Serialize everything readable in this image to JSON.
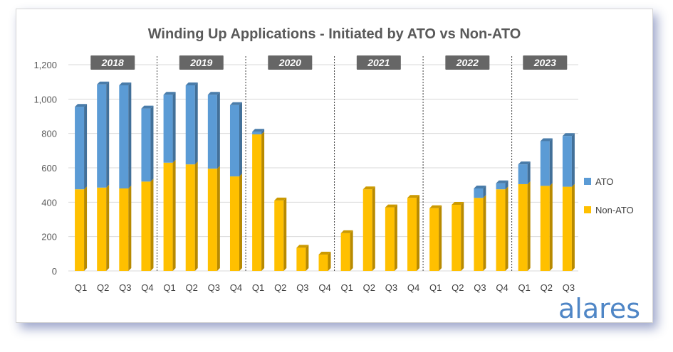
{
  "chart_data": {
    "type": "bar",
    "stacked": true,
    "title": "Winding Up Applications - Initiated by ATO vs Non-ATO",
    "groups": [
      "2018",
      "2019",
      "2020",
      "2021",
      "2022",
      "2023"
    ],
    "categories": [
      "Q1",
      "Q2",
      "Q3",
      "Q4",
      "Q1",
      "Q2",
      "Q3",
      "Q4",
      "Q1",
      "Q2",
      "Q3",
      "Q4",
      "Q1",
      "Q2",
      "Q3",
      "Q4",
      "Q1",
      "Q2",
      "Q3",
      "Q4",
      "Q1",
      "Q2",
      "Q3"
    ],
    "series": [
      {
        "name": "Non-ATO",
        "color": "#ffc000",
        "values": [
          475,
          485,
          480,
          520,
          630,
          620,
          595,
          550,
          795,
          410,
          135,
          95,
          220,
          475,
          370,
          425,
          365,
          385,
          425,
          475,
          505,
          495,
          490
        ]
      },
      {
        "name": "ATO",
        "color": "#5b9bd5",
        "values": [
          480,
          600,
          600,
          425,
          395,
          460,
          430,
          415,
          15,
          0,
          0,
          0,
          0,
          0,
          0,
          0,
          0,
          0,
          55,
          35,
          115,
          260,
          295
        ]
      }
    ],
    "yticks": [
      "0",
      "200",
      "400",
      "600",
      "800",
      "1,000",
      "1,200"
    ],
    "ylim": [
      0,
      1200
    ],
    "legend": [
      "ATO",
      "Non-ATO"
    ],
    "legend_position": "right",
    "grid": true
  },
  "watermark": "alares"
}
